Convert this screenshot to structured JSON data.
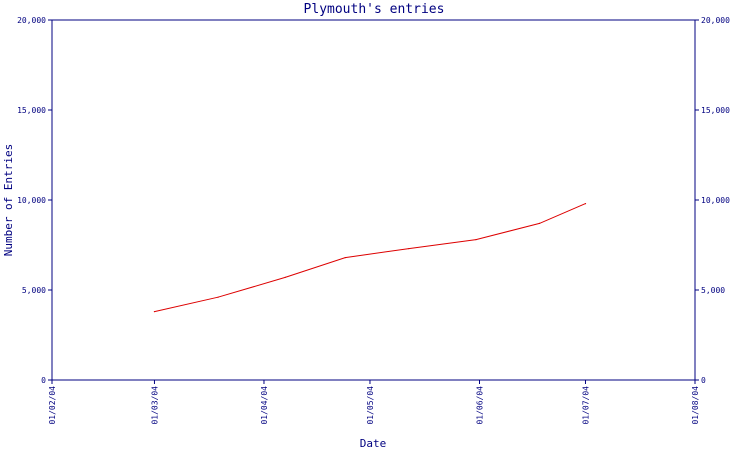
{
  "chart_data": {
    "type": "line",
    "title": "Plymouth's entries",
    "xlabel": "Date",
    "ylabel": "Number of Entries",
    "ylim": [
      0,
      20000
    ],
    "y_ticks": [
      "0",
      "5,000",
      "10,000",
      "15,000",
      "20,000"
    ],
    "y_tick_values": [
      0,
      5000,
      10000,
      15000,
      20000
    ],
    "x_ticks": [
      "01/02/04",
      "01/03/04",
      "01/04/04",
      "01/05/04",
      "01/06/04",
      "01/07/04",
      "01/08/04"
    ],
    "x_tick_dates": [
      "2004-02-01",
      "2004-03-01",
      "2004-04-01",
      "2004-05-01",
      "2004-06-01",
      "2004-07-01",
      "2004-08-01"
    ],
    "xlim": [
      "2004-02-01",
      "2004-08-01"
    ],
    "grid": false,
    "legend": "none",
    "colors": {
      "axis": "#000080",
      "line": "#dd0000"
    },
    "series": [
      {
        "x": [
          "2004-03-01",
          "2004-03-19",
          "2004-04-07",
          "2004-04-24",
          "2004-05-12",
          "2004-05-31",
          "2004-06-18",
          "2004-07-01"
        ],
        "values": [
          3800,
          4600,
          5700,
          6800,
          7300,
          7800,
          8700,
          9800
        ]
      }
    ]
  }
}
